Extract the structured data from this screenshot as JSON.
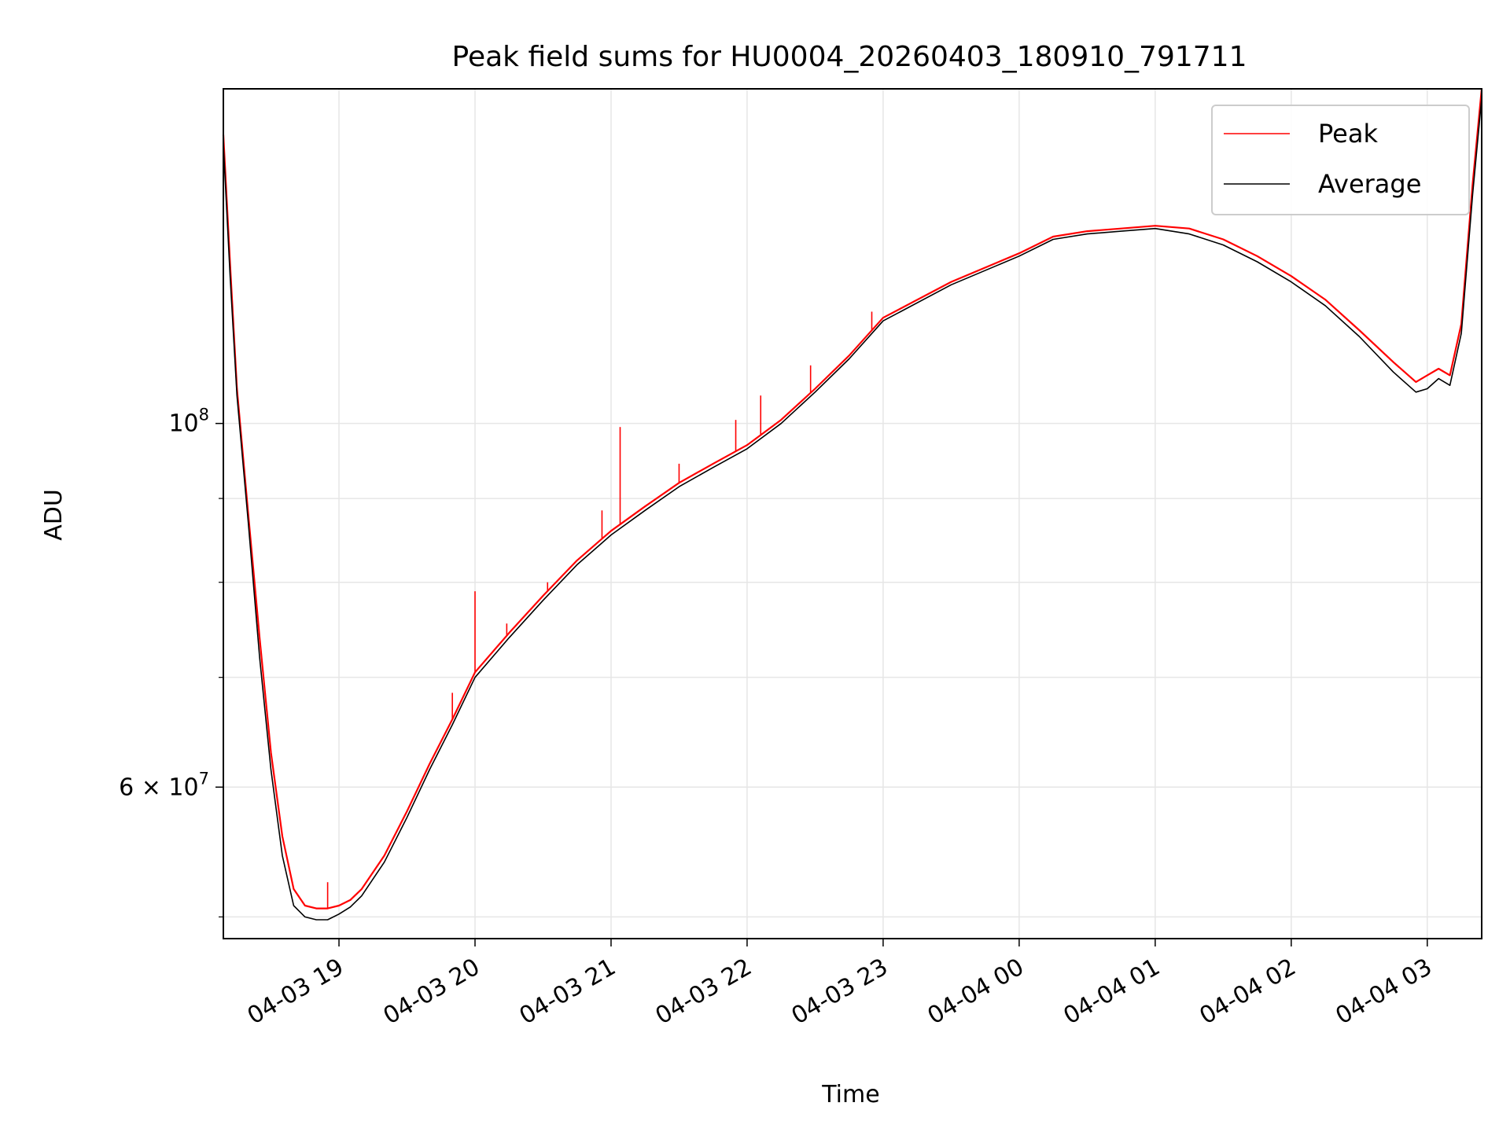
{
  "chart_data": {
    "type": "line",
    "title": "Peak field sums for HU0004_20260403_180910_791711",
    "xlabel": "Time",
    "ylabel": "ADU",
    "y_scale": "log",
    "xlim": [
      "2026-04-03 18:09",
      "2026-04-04 03:24"
    ],
    "ylim": [
      48500000,
      160000000
    ],
    "x_tick_labels": [
      "04-03 19",
      "04-03 20",
      "04-03 21",
      "04-03 22",
      "04-03 23",
      "04-04 00",
      "04-04 01",
      "04-04 02",
      "04-04 03"
    ],
    "x_ticks": [
      "2026-04-03 19:00",
      "2026-04-03 20:00",
      "2026-04-03 21:00",
      "2026-04-03 22:00",
      "2026-04-03 23:00",
      "2026-04-04 00:00",
      "2026-04-04 01:00",
      "2026-04-04 02:00",
      "2026-04-04 03:00"
    ],
    "y_ticks": [
      {
        "value": 100000000,
        "label_base": "10",
        "label_exp": "8"
      },
      {
        "value": 60000000,
        "label_base": "6 × 10",
        "label_exp": "7"
      }
    ],
    "y_minor_ticks": [
      50000000,
      70000000,
      80000000,
      90000000
    ],
    "grid": true,
    "legend_position": "top-right",
    "series": [
      {
        "name": "Peak",
        "color": "#ff0000",
        "x": [
          "2026-04-03 18:09",
          "2026-04-03 18:12",
          "2026-04-03 18:15",
          "2026-04-03 18:20",
          "2026-04-03 18:25",
          "2026-04-03 18:30",
          "2026-04-03 18:35",
          "2026-04-03 18:40",
          "2026-04-03 18:45",
          "2026-04-03 18:50",
          "2026-04-03 18:55",
          "2026-04-03 19:00",
          "2026-04-03 19:05",
          "2026-04-03 19:10",
          "2026-04-03 19:20",
          "2026-04-03 19:30",
          "2026-04-03 19:40",
          "2026-04-03 19:50",
          "2026-04-03 20:00",
          "2026-04-03 20:15",
          "2026-04-03 20:30",
          "2026-04-03 20:45",
          "2026-04-03 21:00",
          "2026-04-03 21:15",
          "2026-04-03 21:30",
          "2026-04-03 21:45",
          "2026-04-03 22:00",
          "2026-04-03 22:15",
          "2026-04-03 22:30",
          "2026-04-03 22:45",
          "2026-04-03 23:00",
          "2026-04-03 23:30",
          "2026-04-04 00:00",
          "2026-04-04 00:15",
          "2026-04-04 00:30",
          "2026-04-04 00:45",
          "2026-04-04 01:00",
          "2026-04-04 01:15",
          "2026-04-04 01:30",
          "2026-04-04 01:45",
          "2026-04-04 02:00",
          "2026-04-04 02:15",
          "2026-04-04 02:30",
          "2026-04-04 02:45",
          "2026-04-04 02:55",
          "2026-04-04 03:00",
          "2026-04-04 03:05",
          "2026-04-04 03:10",
          "2026-04-04 03:15",
          "2026-04-04 03:20",
          "2026-04-04 03:24"
        ],
        "values": [
          150000000,
          125000000,
          105000000,
          88000000,
          74000000,
          63000000,
          56000000,
          52000000,
          50800000,
          50600000,
          50600000,
          50800000,
          51200000,
          52000000,
          54500000,
          58000000,
          62000000,
          66000000,
          70500000,
          74500000,
          78500000,
          82500000,
          86000000,
          89000000,
          92000000,
          94500000,
          97000000,
          100500000,
          105000000,
          110000000,
          116000000,
          122000000,
          127000000,
          130000000,
          131000000,
          131500000,
          132000000,
          131500000,
          129500000,
          126500000,
          123000000,
          119000000,
          114000000,
          109000000,
          106000000,
          107000000,
          108000000,
          107000000,
          115000000,
          140000000,
          160000000
        ],
        "spikes": [
          {
            "x": "2026-04-03 18:55",
            "value": 52500000
          },
          {
            "x": "2026-04-03 19:50",
            "value": 68500000
          },
          {
            "x": "2026-04-03 20:00",
            "value": 79000000
          },
          {
            "x": "2026-04-03 20:14",
            "value": 75500000
          },
          {
            "x": "2026-04-03 20:32",
            "value": 80000000
          },
          {
            "x": "2026-04-03 20:56",
            "value": 88500000
          },
          {
            "x": "2026-04-03 21:04",
            "value": 99500000
          },
          {
            "x": "2026-04-03 21:30",
            "value": 94500000
          },
          {
            "x": "2026-04-03 21:55",
            "value": 100500000
          },
          {
            "x": "2026-04-03 22:06",
            "value": 104000000
          },
          {
            "x": "2026-04-03 22:28",
            "value": 108500000
          },
          {
            "x": "2026-04-03 22:55",
            "value": 117000000
          }
        ]
      },
      {
        "name": "Average",
        "color": "#000000",
        "x": [
          "2026-04-03 18:09",
          "2026-04-03 18:12",
          "2026-04-03 18:15",
          "2026-04-03 18:20",
          "2026-04-03 18:25",
          "2026-04-03 18:30",
          "2026-04-03 18:35",
          "2026-04-03 18:40",
          "2026-04-03 18:45",
          "2026-04-03 18:50",
          "2026-04-03 18:55",
          "2026-04-03 19:00",
          "2026-04-03 19:05",
          "2026-04-03 19:10",
          "2026-04-03 19:20",
          "2026-04-03 19:30",
          "2026-04-03 19:40",
          "2026-04-03 19:50",
          "2026-04-03 20:00",
          "2026-04-03 20:15",
          "2026-04-03 20:30",
          "2026-04-03 20:45",
          "2026-04-03 21:00",
          "2026-04-03 21:15",
          "2026-04-03 21:30",
          "2026-04-03 21:45",
          "2026-04-03 22:00",
          "2026-04-03 22:15",
          "2026-04-03 22:30",
          "2026-04-03 22:45",
          "2026-04-03 23:00",
          "2026-04-03 23:30",
          "2026-04-04 00:00",
          "2026-04-04 00:15",
          "2026-04-04 00:30",
          "2026-04-04 00:45",
          "2026-04-04 01:00",
          "2026-04-04 01:15",
          "2026-04-04 01:30",
          "2026-04-04 01:45",
          "2026-04-04 02:00",
          "2026-04-04 02:15",
          "2026-04-04 02:30",
          "2026-04-04 02:45",
          "2026-04-04 02:55",
          "2026-04-04 03:00",
          "2026-04-04 03:05",
          "2026-04-04 03:10",
          "2026-04-04 03:15",
          "2026-04-04 03:20",
          "2026-04-04 03:24"
        ],
        "values": [
          148000000,
          123000000,
          104000000,
          87000000,
          72000000,
          61500000,
          54500000,
          50800000,
          50000000,
          49800000,
          49800000,
          50200000,
          50700000,
          51500000,
          54000000,
          57500000,
          61500000,
          65500000,
          70000000,
          74000000,
          78000000,
          82000000,
          85500000,
          88500000,
          91500000,
          94000000,
          96500000,
          100000000,
          104500000,
          109500000,
          115500000,
          121500000,
          126500000,
          129500000,
          130500000,
          131000000,
          131500000,
          130500000,
          128500000,
          125500000,
          122000000,
          118000000,
          113000000,
          107500000,
          104500000,
          105000000,
          106500000,
          105500000,
          113500000,
          138000000,
          158000000
        ]
      }
    ]
  }
}
